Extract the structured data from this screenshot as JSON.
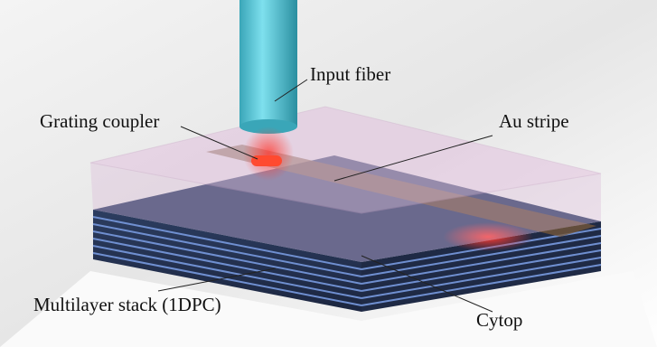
{
  "labels": {
    "input_fiber": "Input fiber",
    "grating_coupler": "Grating coupler",
    "au_stripe": "Au stripe",
    "multilayer": "Multilayer stack (1DPC)",
    "cytop": "Cytop"
  }
}
